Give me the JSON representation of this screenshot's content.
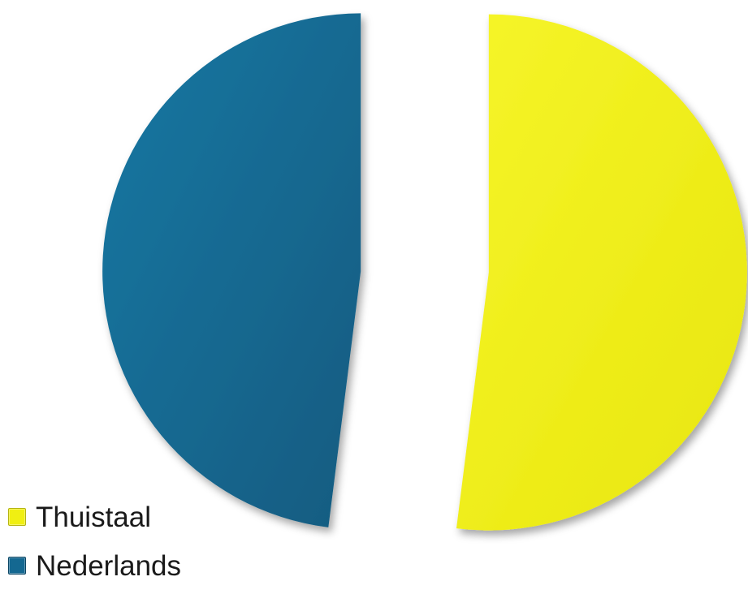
{
  "chart_data": {
    "type": "pie",
    "categories": [
      "Thuistaal",
      "Nederlands"
    ],
    "values": [
      52,
      48
    ],
    "colors": [
      "#f0ef12",
      "#146891"
    ],
    "legend": "bottom-left",
    "exploded": true
  },
  "legend": {
    "items": [
      {
        "label": "Thuistaal",
        "color": "#f0ef12"
      },
      {
        "label": "Nederlands",
        "color": "#146891"
      }
    ]
  }
}
